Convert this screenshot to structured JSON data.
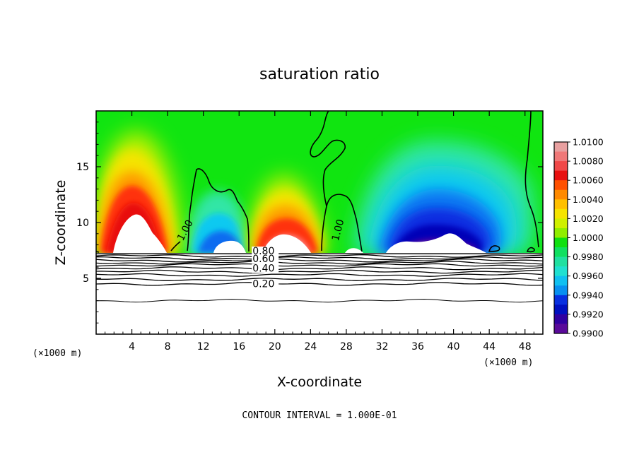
{
  "chart_data": {
    "type": "heatmap",
    "title": "saturation ratio",
    "xlabel": "X-coordinate",
    "ylabel": "Z-coordinate",
    "x_unit_left": "(×1000 m)",
    "x_unit_right": "(×1000 m)",
    "footer": "CONTOUR INTERVAL = 1.000E-01",
    "xlim": [
      0,
      50
    ],
    "ylim": [
      0,
      20
    ],
    "x_ticks": [
      "4",
      "8",
      "12",
      "16",
      "20",
      "24",
      "28",
      "32",
      "36",
      "40",
      "44",
      "48"
    ],
    "y_ticks": [
      "5",
      "10",
      "15"
    ],
    "colorbar": {
      "min": 0.99,
      "max": 1.01,
      "ticks": [
        "1.0100",
        "1.0080",
        "1.0060",
        "1.0040",
        "1.0020",
        "1.0000",
        "0.9980",
        "0.9960",
        "0.9940",
        "0.9920",
        "0.9900"
      ]
    },
    "contour_labels": [
      {
        "text": "1.00",
        "x": 9.7,
        "z": 8.3,
        "angle": -62
      },
      {
        "text": "1.00",
        "x": 27.1,
        "z": 8.3,
        "angle": -75
      },
      {
        "text": "0.80",
        "x": 17.5,
        "z": 7.15,
        "angle": 0
      },
      {
        "text": "0.60",
        "x": 17.5,
        "z": 6.45,
        "angle": 0
      },
      {
        "text": "0.40",
        "x": 17.5,
        "z": 5.6,
        "angle": 0
      },
      {
        "text": "0.20",
        "x": 17.5,
        "z": 4.2,
        "angle": 0
      }
    ],
    "cloud_layer_base_z": 7.2,
    "lower_contour_levels_z": [
      7.0,
      6.8,
      6.6,
      6.4,
      6.2,
      5.9,
      5.6,
      5.3,
      4.9,
      4.5,
      3.0
    ]
  }
}
